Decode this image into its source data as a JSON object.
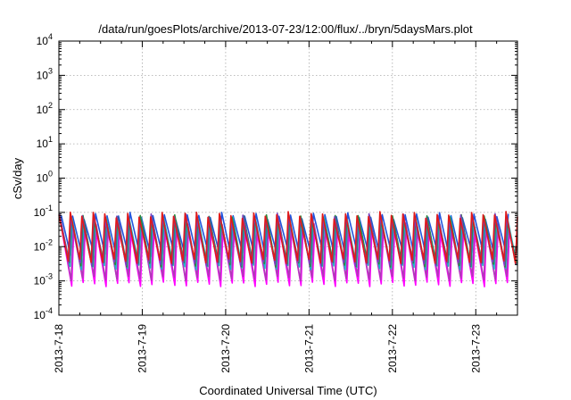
{
  "chart_data": {
    "type": "line",
    "title": "/data/run/goesPlots/archive/2013-07-23/12:00/flux/../bryn/5daysMars.plot",
    "xlabel": "Coordinated Universal Time (UTC)",
    "ylabel": "cSv/day",
    "yscale": "log",
    "ylim": [
      0.0001,
      10000
    ],
    "xlim": [
      "2013-07-18",
      "2013-07-23 12:00"
    ],
    "grid": true,
    "legend": "none",
    "x_ticks": [
      "2013-7-18",
      "2013-7-19",
      "2013-7-20",
      "2013-7-21",
      "2013-7-22",
      "2013-7-23"
    ],
    "y_ticks": [
      {
        "base": "10",
        "exp": "4"
      },
      {
        "base": "10",
        "exp": "3"
      },
      {
        "base": "10",
        "exp": "2"
      },
      {
        "base": "10",
        "exp": "1"
      },
      {
        "base": "10",
        "exp": "0"
      },
      {
        "base": "10",
        "exp": "-1"
      },
      {
        "base": "10",
        "exp": "-2"
      },
      {
        "base": "10",
        "exp": "-3"
      },
      {
        "base": "10",
        "exp": "-4"
      }
    ],
    "oscillation_period_hours": 3.3,
    "series": [
      {
        "color": "#e01a1a",
        "peak": 0.085,
        "trough": 0.0038
      },
      {
        "color": "#7a3fc0",
        "peak": 0.075,
        "trough": 0.0032
      },
      {
        "color": "#2a8a3a",
        "peak": 0.07,
        "trough": 0.003
      },
      {
        "color": "#19b5c8",
        "peak": 0.06,
        "trough": 0.0025
      },
      {
        "color": "#2255dd",
        "peak": 0.08,
        "trough": 0.006
      },
      {
        "color": "#b03ab8",
        "peak": 0.04,
        "trough": 0.0012
      },
      {
        "color": "#ff00ff",
        "peak": 0.03,
        "trough": 0.0008
      }
    ]
  }
}
